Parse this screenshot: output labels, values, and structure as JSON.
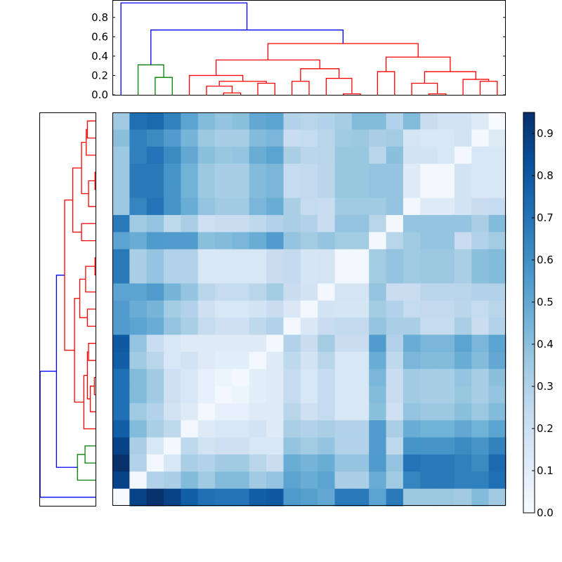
{
  "chart_data": {
    "type": "heatmap",
    "title": "",
    "description": "Clustered distance heatmap (23x23) with top and left dendrograms and a Blues colorbar",
    "n": 23,
    "colormap": "Blues",
    "colorbar": {
      "min": 0.0,
      "max": 0.95,
      "ticks": [
        "0.0",
        "0.1",
        "0.2",
        "0.3",
        "0.4",
        "0.5",
        "0.6",
        "0.7",
        "0.8",
        "0.9"
      ],
      "tick_values": [
        0.0,
        0.1,
        0.2,
        0.3,
        0.4,
        0.5,
        0.6,
        0.7,
        0.8,
        0.9
      ]
    },
    "top_dendrogram": {
      "yticks": [
        "0.0",
        "0.2",
        "0.4",
        "0.6",
        "0.8"
      ],
      "tick_values": [
        0.0,
        0.2,
        0.4,
        0.6,
        0.8
      ],
      "ylim": [
        0,
        0.98
      ],
      "colors": {
        "cluster1": "#008000",
        "cluster2": "#ff0000",
        "link": "#0000ff"
      }
    },
    "matrix": [
      [
        0.35,
        0.72,
        0.74,
        0.65,
        0.52,
        0.42,
        0.38,
        0.4,
        0.5,
        0.52,
        0.3,
        0.28,
        0.3,
        0.33,
        0.42,
        0.42,
        0.3,
        0.42,
        0.22,
        0.18,
        0.18,
        0.12,
        0.0
      ],
      [
        0.4,
        0.66,
        0.62,
        0.55,
        0.45,
        0.36,
        0.33,
        0.33,
        0.42,
        0.44,
        0.22,
        0.24,
        0.28,
        0.35,
        0.36,
        0.32,
        0.34,
        0.16,
        0.15,
        0.15,
        0.18,
        0.02,
        0.12
      ],
      [
        0.36,
        0.66,
        0.7,
        0.62,
        0.5,
        0.4,
        0.37,
        0.38,
        0.48,
        0.52,
        0.32,
        0.27,
        0.28,
        0.37,
        0.37,
        0.28,
        0.4,
        0.18,
        0.18,
        0.15,
        0.02,
        0.15,
        0.15
      ],
      [
        0.36,
        0.68,
        0.68,
        0.58,
        0.46,
        0.36,
        0.33,
        0.33,
        0.42,
        0.44,
        0.24,
        0.25,
        0.27,
        0.37,
        0.37,
        0.38,
        0.38,
        0.12,
        0.02,
        0.03,
        0.18,
        0.15,
        0.15
      ],
      [
        0.36,
        0.68,
        0.68,
        0.58,
        0.46,
        0.36,
        0.33,
        0.33,
        0.42,
        0.44,
        0.24,
        0.25,
        0.27,
        0.37,
        0.37,
        0.38,
        0.38,
        0.12,
        0.02,
        0.03,
        0.18,
        0.15,
        0.15
      ],
      [
        0.36,
        0.64,
        0.7,
        0.58,
        0.48,
        0.38,
        0.35,
        0.35,
        0.44,
        0.48,
        0.32,
        0.24,
        0.22,
        0.35,
        0.35,
        0.35,
        0.38,
        0.02,
        0.12,
        0.12,
        0.18,
        0.22,
        0.24
      ],
      [
        0.68,
        0.35,
        0.38,
        0.26,
        0.32,
        0.2,
        0.22,
        0.22,
        0.26,
        0.3,
        0.32,
        0.3,
        0.22,
        0.38,
        0.38,
        0.28,
        0.02,
        0.38,
        0.38,
        0.38,
        0.38,
        0.32,
        0.42
      ],
      [
        0.52,
        0.48,
        0.56,
        0.55,
        0.55,
        0.4,
        0.42,
        0.44,
        0.48,
        0.55,
        0.38,
        0.34,
        0.38,
        0.34,
        0.34,
        0.02,
        0.28,
        0.35,
        0.38,
        0.38,
        0.22,
        0.3,
        0.34
      ],
      [
        0.68,
        0.32,
        0.38,
        0.3,
        0.3,
        0.15,
        0.15,
        0.15,
        0.15,
        0.22,
        0.25,
        0.16,
        0.17,
        0.03,
        0.03,
        0.34,
        0.38,
        0.35,
        0.36,
        0.36,
        0.32,
        0.4,
        0.42
      ],
      [
        0.68,
        0.32,
        0.38,
        0.3,
        0.3,
        0.15,
        0.15,
        0.15,
        0.15,
        0.22,
        0.25,
        0.16,
        0.17,
        0.03,
        0.03,
        0.34,
        0.38,
        0.35,
        0.36,
        0.36,
        0.32,
        0.4,
        0.42
      ],
      [
        0.52,
        0.52,
        0.55,
        0.45,
        0.38,
        0.28,
        0.24,
        0.24,
        0.28,
        0.34,
        0.22,
        0.18,
        0.02,
        0.17,
        0.17,
        0.38,
        0.22,
        0.22,
        0.27,
        0.27,
        0.28,
        0.3,
        0.3
      ],
      [
        0.55,
        0.48,
        0.45,
        0.34,
        0.3,
        0.2,
        0.15,
        0.15,
        0.18,
        0.22,
        0.14,
        0.02,
        0.18,
        0.16,
        0.16,
        0.34,
        0.3,
        0.24,
        0.25,
        0.25,
        0.27,
        0.24,
        0.28
      ],
      [
        0.55,
        0.52,
        0.48,
        0.38,
        0.32,
        0.24,
        0.2,
        0.2,
        0.26,
        0.3,
        0.02,
        0.14,
        0.22,
        0.25,
        0.25,
        0.38,
        0.32,
        0.32,
        0.24,
        0.24,
        0.32,
        0.22,
        0.3
      ],
      [
        0.8,
        0.38,
        0.22,
        0.15,
        0.12,
        0.12,
        0.12,
        0.12,
        0.12,
        0.02,
        0.3,
        0.22,
        0.34,
        0.22,
        0.22,
        0.55,
        0.3,
        0.48,
        0.44,
        0.44,
        0.52,
        0.44,
        0.52
      ],
      [
        0.78,
        0.35,
        0.28,
        0.15,
        0.18,
        0.12,
        0.1,
        0.1,
        0.02,
        0.12,
        0.26,
        0.18,
        0.28,
        0.15,
        0.15,
        0.48,
        0.26,
        0.44,
        0.42,
        0.42,
        0.48,
        0.42,
        0.5
      ],
      [
        0.72,
        0.42,
        0.35,
        0.2,
        0.15,
        0.08,
        0.05,
        0.02,
        0.1,
        0.12,
        0.24,
        0.15,
        0.24,
        0.15,
        0.15,
        0.44,
        0.22,
        0.35,
        0.33,
        0.33,
        0.38,
        0.33,
        0.4
      ],
      [
        0.72,
        0.42,
        0.35,
        0.2,
        0.15,
        0.08,
        0.02,
        0.05,
        0.1,
        0.12,
        0.24,
        0.15,
        0.24,
        0.15,
        0.15,
        0.42,
        0.22,
        0.35,
        0.33,
        0.33,
        0.37,
        0.33,
        0.38
      ],
      [
        0.72,
        0.35,
        0.3,
        0.18,
        0.12,
        0.02,
        0.08,
        0.08,
        0.12,
        0.12,
        0.28,
        0.2,
        0.24,
        0.15,
        0.15,
        0.4,
        0.2,
        0.38,
        0.36,
        0.36,
        0.4,
        0.36,
        0.42
      ],
      [
        0.78,
        0.42,
        0.32,
        0.26,
        0.02,
        0.12,
        0.15,
        0.15,
        0.18,
        0.12,
        0.32,
        0.3,
        0.32,
        0.3,
        0.3,
        0.55,
        0.32,
        0.48,
        0.46,
        0.46,
        0.5,
        0.46,
        0.52
      ],
      [
        0.88,
        0.32,
        0.15,
        0.02,
        0.26,
        0.18,
        0.2,
        0.2,
        0.15,
        0.15,
        0.38,
        0.34,
        0.38,
        0.3,
        0.3,
        0.55,
        0.26,
        0.58,
        0.58,
        0.58,
        0.62,
        0.58,
        0.65
      ],
      [
        0.95,
        0.3,
        0.02,
        0.15,
        0.32,
        0.3,
        0.35,
        0.35,
        0.28,
        0.22,
        0.48,
        0.45,
        0.48,
        0.38,
        0.38,
        0.56,
        0.38,
        0.7,
        0.68,
        0.68,
        0.66,
        0.62,
        0.74
      ],
      [
        0.88,
        0.02,
        0.3,
        0.32,
        0.42,
        0.35,
        0.42,
        0.42,
        0.35,
        0.38,
        0.52,
        0.48,
        0.52,
        0.32,
        0.32,
        0.48,
        0.35,
        0.64,
        0.68,
        0.68,
        0.66,
        0.66,
        0.72
      ],
      [
        0.0,
        0.88,
        0.95,
        0.88,
        0.78,
        0.72,
        0.7,
        0.7,
        0.78,
        0.8,
        0.56,
        0.54,
        0.5,
        0.68,
        0.68,
        0.52,
        0.68,
        0.36,
        0.36,
        0.36,
        0.35,
        0.42,
        0.35
      ]
    ]
  }
}
